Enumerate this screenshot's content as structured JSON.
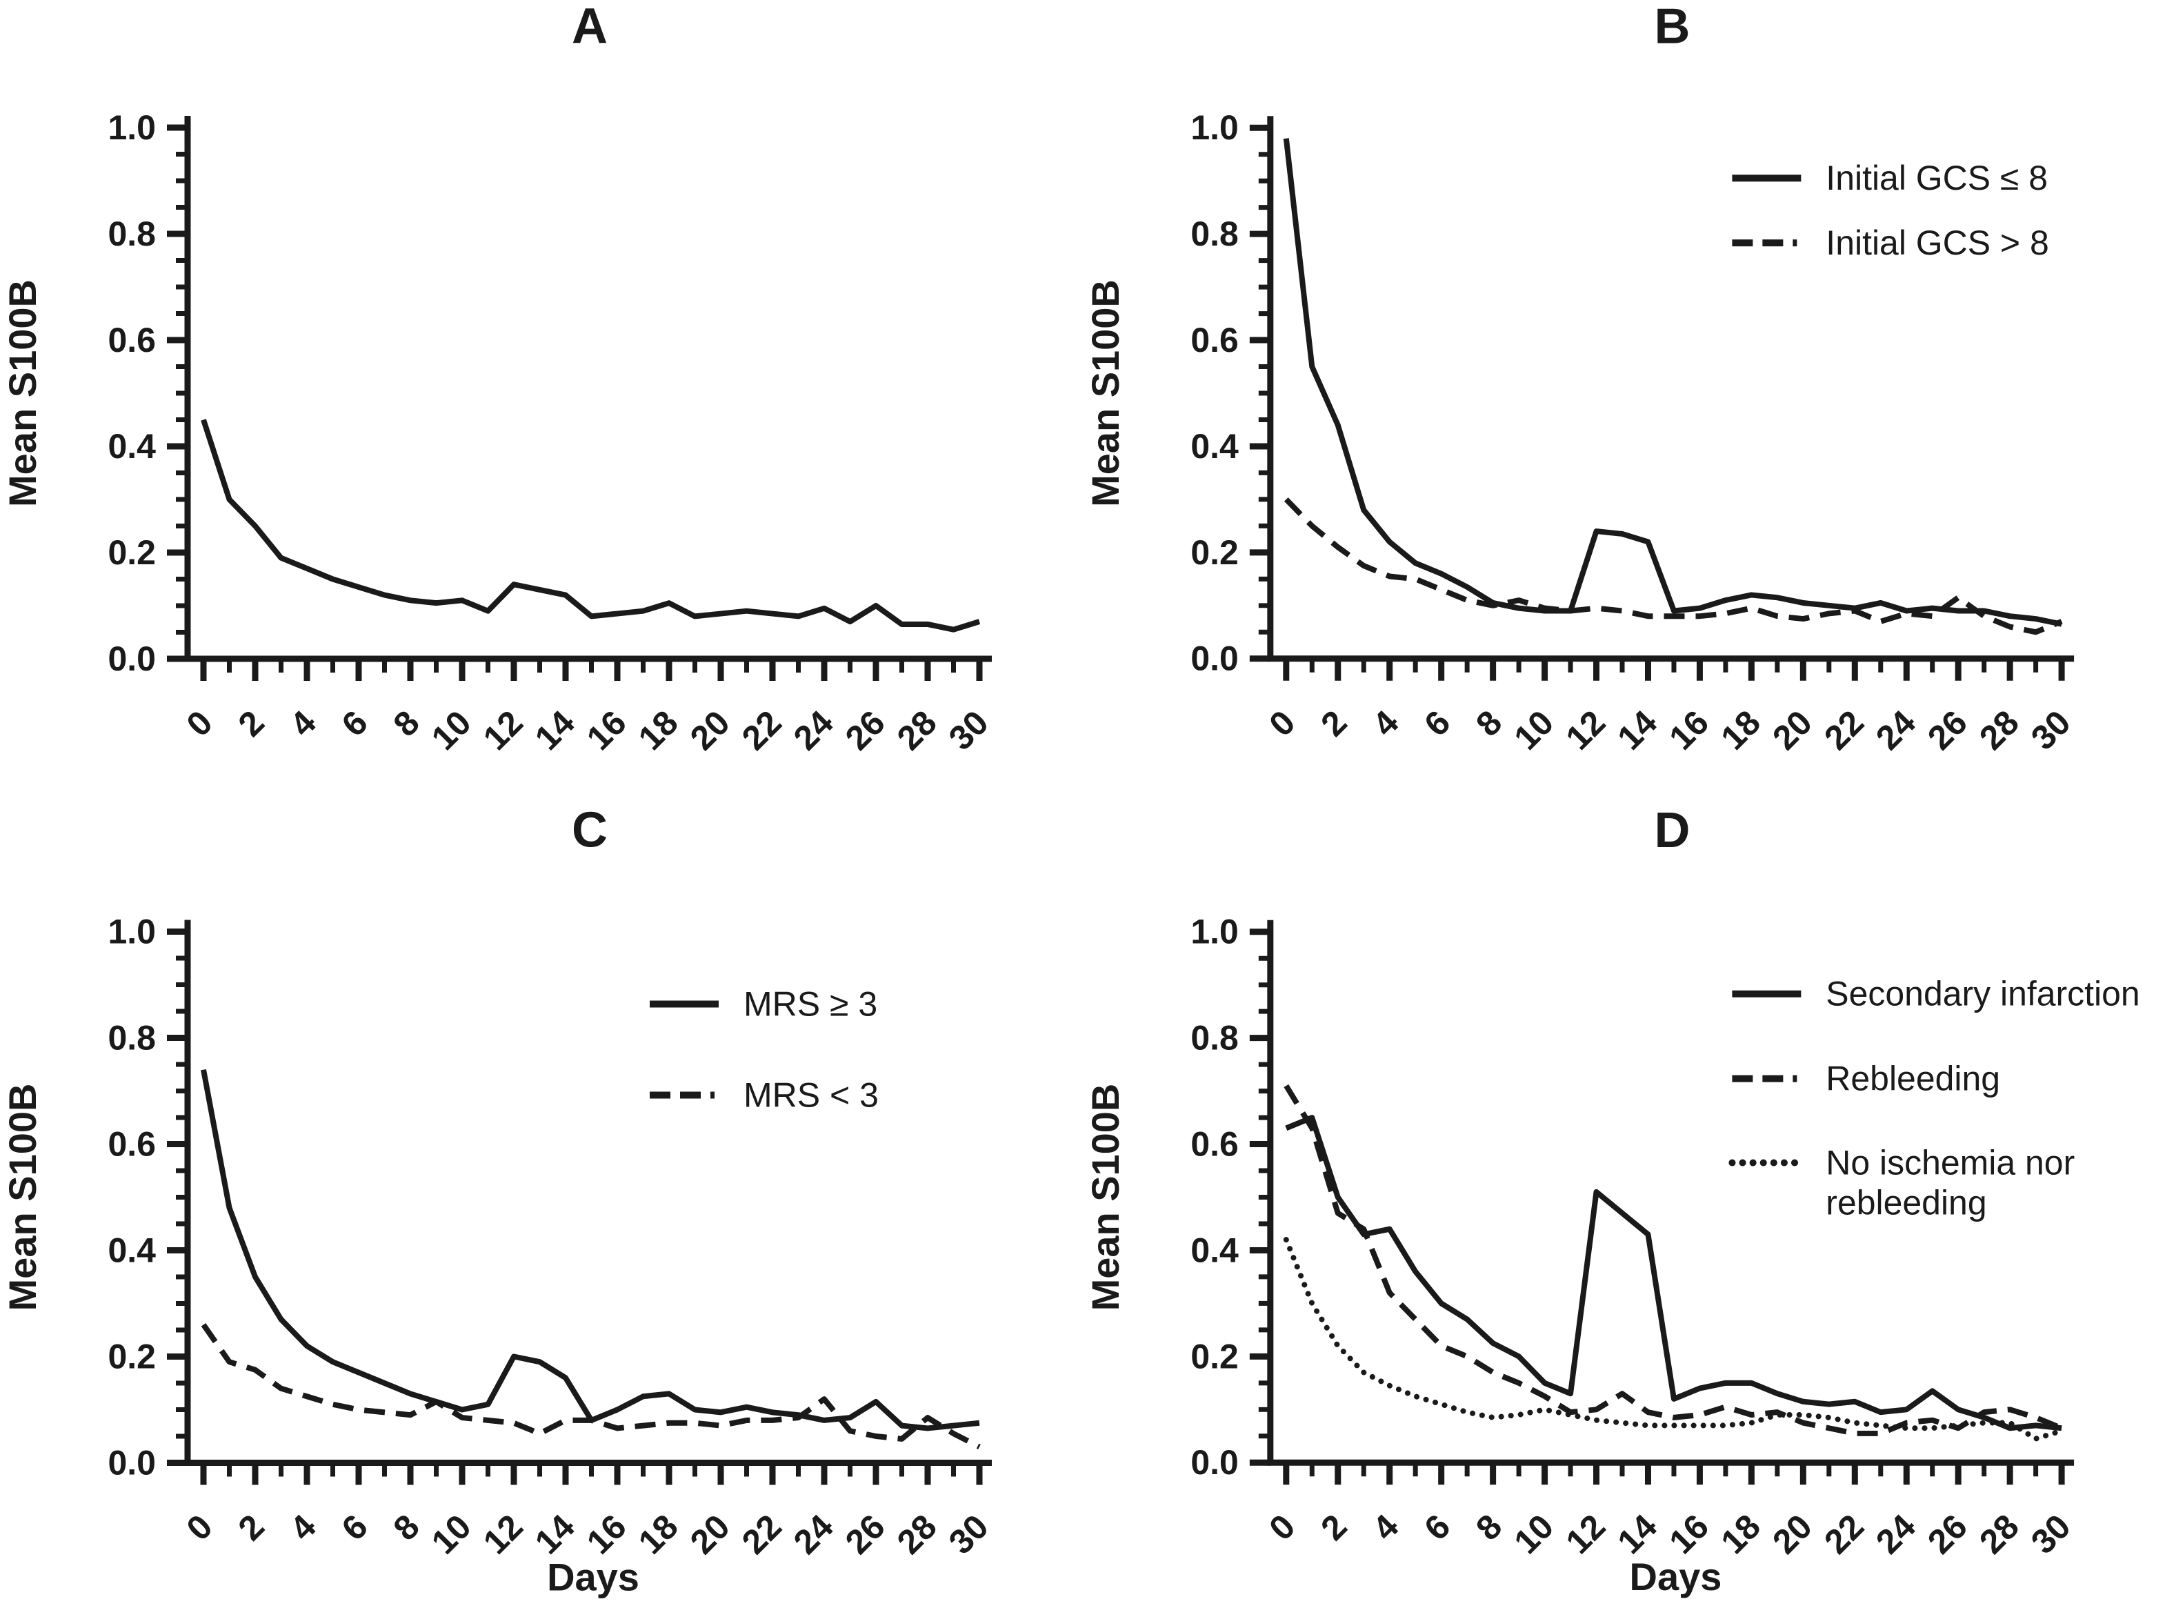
{
  "page": {
    "background": "#ffffff",
    "line_color": "#1a1a1a"
  },
  "axes": {
    "y_axis_label": "Mean S100B",
    "x_axis_label": "Days",
    "y_tick_labels": [
      "0.0",
      "0.2",
      "0.4",
      "0.6",
      "0.8",
      "1.0"
    ],
    "x_tick_labels": [
      "0",
      "2",
      "4",
      "6",
      "8",
      "10",
      "12",
      "14",
      "16",
      "18",
      "20",
      "22",
      "24",
      "26",
      "28",
      "30"
    ]
  },
  "chart_data": [
    {
      "type": "line",
      "panel": "A",
      "xlabel": "",
      "ylabel": "Mean S100B",
      "xlim": [
        0,
        30
      ],
      "ylim": [
        0,
        1.0
      ],
      "show_x_axis_label": false,
      "legend_position": null,
      "x": [
        0,
        1,
        2,
        3,
        4,
        5,
        6,
        7,
        8,
        9,
        10,
        11,
        12,
        13,
        14,
        15,
        16,
        17,
        18,
        19,
        20,
        21,
        22,
        23,
        24,
        25,
        26,
        27,
        28,
        29,
        30
      ],
      "series": [
        {
          "name": "",
          "line_style": "solid",
          "values": [
            0.45,
            0.3,
            0.25,
            0.19,
            0.17,
            0.15,
            0.135,
            0.12,
            0.11,
            0.105,
            0.11,
            0.09,
            0.14,
            0.13,
            0.12,
            0.08,
            0.085,
            0.09,
            0.105,
            0.08,
            0.085,
            0.09,
            0.085,
            0.08,
            0.095,
            0.07,
            0.1,
            0.065,
            0.065,
            0.055,
            0.07
          ]
        }
      ]
    },
    {
      "type": "line",
      "panel": "B",
      "xlabel": "",
      "ylabel": "Mean S100B",
      "xlim": [
        0,
        30
      ],
      "ylim": [
        0,
        1.0
      ],
      "show_x_axis_label": false,
      "legend_position": "top-right",
      "x": [
        0,
        1,
        2,
        3,
        4,
        5,
        6,
        7,
        8,
        9,
        10,
        11,
        12,
        13,
        14,
        15,
        16,
        17,
        18,
        19,
        20,
        21,
        22,
        23,
        24,
        25,
        26,
        27,
        28,
        29,
        30
      ],
      "series": [
        {
          "name": "Initial GCS ≤ 8",
          "line_style": "solid",
          "values": [
            0.98,
            0.55,
            0.44,
            0.28,
            0.22,
            0.18,
            0.16,
            0.135,
            0.105,
            0.095,
            0.09,
            0.09,
            0.24,
            0.235,
            0.22,
            0.09,
            0.095,
            0.11,
            0.12,
            0.115,
            0.105,
            0.1,
            0.095,
            0.105,
            0.09,
            0.095,
            0.09,
            0.09,
            0.08,
            0.075,
            0.065
          ]
        },
        {
          "name": "Initial GCS > 8",
          "line_style": "dashed",
          "values": [
            0.3,
            0.25,
            0.21,
            0.175,
            0.155,
            0.15,
            0.13,
            0.11,
            0.1,
            0.11,
            0.095,
            0.09,
            0.095,
            0.09,
            0.08,
            0.08,
            0.08,
            0.085,
            0.095,
            0.08,
            0.075,
            0.085,
            0.09,
            0.07,
            0.085,
            0.08,
            0.115,
            0.08,
            0.06,
            0.05,
            0.07
          ]
        }
      ]
    },
    {
      "type": "line",
      "panel": "C",
      "xlabel": "Days",
      "ylabel": "Mean S100B",
      "xlim": [
        0,
        30
      ],
      "ylim": [
        0,
        1.0
      ],
      "show_x_axis_label": true,
      "legend_position": "top-right",
      "x": [
        0,
        1,
        2,
        3,
        4,
        5,
        6,
        7,
        8,
        9,
        10,
        11,
        12,
        13,
        14,
        15,
        16,
        17,
        18,
        19,
        20,
        21,
        22,
        23,
        24,
        25,
        26,
        27,
        28,
        29,
        30
      ],
      "series": [
        {
          "name": "MRS ≥ 3",
          "line_style": "solid",
          "values": [
            0.74,
            0.48,
            0.35,
            0.27,
            0.22,
            0.19,
            0.17,
            0.15,
            0.13,
            0.115,
            0.1,
            0.11,
            0.2,
            0.19,
            0.16,
            0.08,
            0.1,
            0.125,
            0.13,
            0.1,
            0.095,
            0.105,
            0.095,
            0.09,
            0.08,
            0.085,
            0.115,
            0.07,
            0.065,
            0.07,
            0.075
          ]
        },
        {
          "name": "MRS < 3",
          "line_style": "dashed",
          "values": [
            0.26,
            0.19,
            0.175,
            0.14,
            0.125,
            0.11,
            0.1,
            0.095,
            0.09,
            0.115,
            0.085,
            0.08,
            0.075,
            0.055,
            0.08,
            0.08,
            0.065,
            0.07,
            0.075,
            0.075,
            0.07,
            0.08,
            0.08,
            0.085,
            0.12,
            0.06,
            0.05,
            0.045,
            0.085,
            0.055,
            0.03
          ]
        }
      ]
    },
    {
      "type": "line",
      "panel": "D",
      "xlabel": "Days",
      "ylabel": "Mean S100B",
      "xlim": [
        0,
        30
      ],
      "ylim": [
        0,
        1.0
      ],
      "show_x_axis_label": true,
      "legend_position": "top-right",
      "x": [
        0,
        1,
        2,
        3,
        4,
        5,
        6,
        7,
        8,
        9,
        10,
        11,
        12,
        13,
        14,
        15,
        16,
        17,
        18,
        19,
        20,
        21,
        22,
        23,
        24,
        25,
        26,
        27,
        28,
        29,
        30
      ],
      "series": [
        {
          "name": "Secondary infarction",
          "line_style": "solid",
          "values": [
            0.63,
            0.65,
            0.5,
            0.43,
            0.44,
            0.36,
            0.3,
            0.27,
            0.225,
            0.2,
            0.15,
            0.13,
            0.51,
            0.47,
            0.43,
            0.12,
            0.14,
            0.15,
            0.15,
            0.13,
            0.115,
            0.11,
            0.115,
            0.095,
            0.1,
            0.135,
            0.1,
            0.085,
            0.065,
            0.07,
            0.065
          ]
        },
        {
          "name": "Rebleeding",
          "line_style": "dashed",
          "values": [
            0.71,
            0.63,
            0.47,
            0.44,
            0.32,
            0.27,
            0.22,
            0.2,
            0.17,
            0.15,
            0.125,
            0.095,
            0.1,
            0.13,
            0.095,
            0.085,
            0.09,
            0.105,
            0.09,
            0.095,
            0.075,
            0.065,
            0.055,
            0.055,
            0.075,
            0.08,
            0.065,
            0.095,
            0.1,
            0.085,
            0.065
          ]
        },
        {
          "name": "No ischemia nor\nrebleeding",
          "line_style": "dotted",
          "values": [
            0.42,
            0.3,
            0.22,
            0.17,
            0.145,
            0.125,
            0.11,
            0.095,
            0.085,
            0.09,
            0.1,
            0.09,
            0.08,
            0.075,
            0.07,
            0.07,
            0.07,
            0.07,
            0.075,
            0.09,
            0.09,
            0.085,
            0.075,
            0.07,
            0.065,
            0.065,
            0.07,
            0.075,
            0.075,
            0.045,
            0.06
          ]
        }
      ]
    }
  ]
}
